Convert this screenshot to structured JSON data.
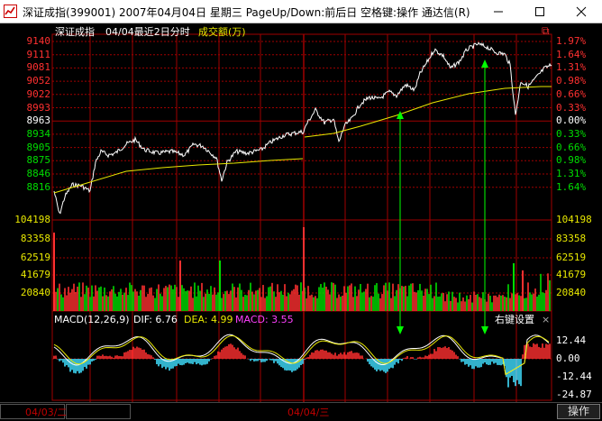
{
  "window": {
    "title": "深证成指(399001) 2007年04月04日 星期三 PageUp/Down:前后日 空格键:操作 通达信(R)",
    "minimize": "—",
    "maximize": "☐",
    "close": "✕"
  },
  "header": {
    "index_name": "深证成指",
    "period_text": "04/04最近2日分时",
    "volume_label": "成交额(万)",
    "restore_icon": "⧉"
  },
  "price_axis": {
    "left": [
      "9140",
      "9111",
      "9081",
      "9052",
      "9022",
      "8993",
      "8963",
      "8934",
      "8905",
      "8875",
      "8846",
      "8816"
    ],
    "right": [
      "1.97%",
      "1.64%",
      "1.31%",
      "0.98%",
      "0.66%",
      "0.33%",
      "0.00%",
      "0.33%",
      "0.66%",
      "0.98%",
      "1.31%",
      "1.64%"
    ],
    "colors": [
      "#ff3030",
      "#ff3030",
      "#ff3030",
      "#ff3030",
      "#ff3030",
      "#ff3030",
      "#ffffff",
      "#00dd00",
      "#00dd00",
      "#00dd00",
      "#00dd00",
      "#00dd00"
    ]
  },
  "volume_axis": {
    "left": [
      "104198",
      "83358",
      "62519",
      "41679",
      "20840"
    ],
    "right": [
      "104198",
      "83358",
      "62519",
      "41679",
      "20840"
    ]
  },
  "macd": {
    "label": "MACD(12,26,9)",
    "dif_text": "DIF: 6.76",
    "dea_text": "DEA: 4.99",
    "macd_text": "MACD: 3.55",
    "settings_label": "右键设置",
    "close_icon": "×",
    "axis": [
      "12.44",
      "0.00",
      "-12.44",
      "-24.87"
    ]
  },
  "footer": {
    "date1": "04/03/二",
    "date2": "04/04/三",
    "operate_button": "操作"
  },
  "colors": {
    "grid": "#a00000",
    "price_line": "#ffffff",
    "avg_line": "#e8e800",
    "up": "#ff3030",
    "down": "#00dd00",
    "macd_pos": "#ff3030",
    "macd_neg": "#40e0ff",
    "arrow": "#00ff00",
    "dea_text": "#e8e800",
    "macd_text": "#ff40ff"
  }
}
